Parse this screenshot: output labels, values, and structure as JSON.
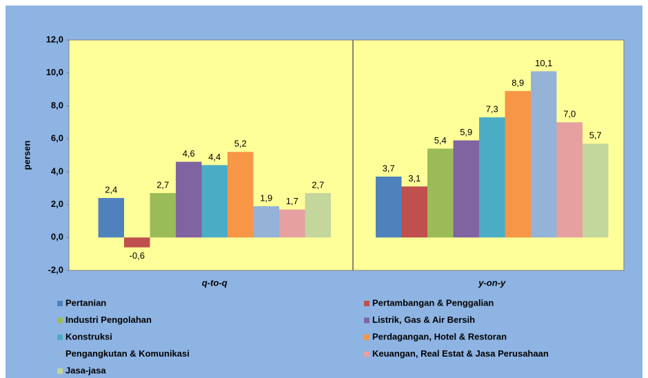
{
  "chart_data": {
    "type": "bar",
    "y_label": "persen",
    "categories": [
      "q-to-q",
      "y-on-y"
    ],
    "ylim": [
      -2,
      12
    ],
    "yticks": [
      {
        "value": -2,
        "label": "-2,0"
      },
      {
        "value": 0,
        "label": "0,0"
      },
      {
        "value": 2,
        "label": "2,0"
      },
      {
        "value": 4,
        "label": "4,0"
      },
      {
        "value": 6,
        "label": "6,0"
      },
      {
        "value": 8,
        "label": "8,0"
      },
      {
        "value": 10,
        "label": "10,0"
      },
      {
        "value": 12,
        "label": "12,0"
      }
    ],
    "series": [
      {
        "name": "Pertanian",
        "color": "#4f81bd",
        "values": [
          2.4,
          3.7
        ],
        "value_labels": [
          "2,4",
          "3,7"
        ]
      },
      {
        "name": "Pertambangan & Penggalian",
        "color": "#c0504d",
        "values": [
          -0.6,
          3.1
        ],
        "value_labels": [
          "-0,6",
          "3,1"
        ]
      },
      {
        "name": "Industri Pengolahan",
        "color": "#9bbb59",
        "values": [
          2.7,
          5.4
        ],
        "value_labels": [
          "2,7",
          "5,4"
        ]
      },
      {
        "name": "Listrik, Gas & Air Bersih",
        "color": "#8064a2",
        "values": [
          4.6,
          5.9
        ],
        "value_labels": [
          "4,6",
          "5,9"
        ]
      },
      {
        "name": "Konstruksi",
        "color": "#4bacc6",
        "values": [
          4.4,
          7.3
        ],
        "value_labels": [
          "4,4",
          "7,3"
        ]
      },
      {
        "name": "Perdagangan, Hotel & Restoran",
        "color": "#f79646",
        "values": [
          5.2,
          8.9
        ],
        "value_labels": [
          "5,2",
          "8,9"
        ]
      },
      {
        "name": "Pengangkutan & Komunikasi",
        "color": "#95b3d7",
        "values": [
          1.9,
          10.1
        ],
        "value_labels": [
          "1,9",
          "10,1"
        ]
      },
      {
        "name": "Keuangan, Real Estat & Jasa Perusahaan",
        "color": "#e6a0a0",
        "values": [
          1.7,
          7.0
        ],
        "value_labels": [
          "1,7",
          "7,0"
        ]
      },
      {
        "name": "Jasa-jasa",
        "color": "#c3d69b",
        "values": [
          2.7,
          5.7
        ],
        "value_labels": [
          "2,7",
          "5,7"
        ]
      }
    ]
  }
}
